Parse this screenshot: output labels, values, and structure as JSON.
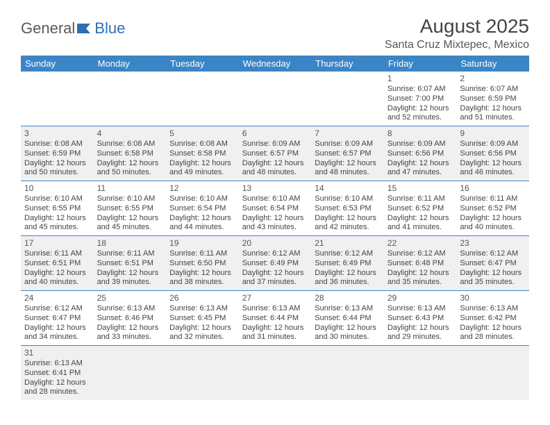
{
  "logo": {
    "text1": "General",
    "text2": "Blue"
  },
  "title": "August 2025",
  "location": "Santa Cruz Mixtepec, Mexico",
  "colors": {
    "header_bg": "#3b85c6",
    "header_text": "#ffffff",
    "row_alt_bg": "#f0f0f0",
    "border": "#3b85c6",
    "text": "#444444"
  },
  "day_headers": [
    "Sunday",
    "Monday",
    "Tuesday",
    "Wednesday",
    "Thursday",
    "Friday",
    "Saturday"
  ],
  "weeks": [
    [
      null,
      null,
      null,
      null,
      null,
      {
        "n": "1",
        "sr": "6:07 AM",
        "ss": "7:00 PM",
        "dl": "12 hours and 52 minutes."
      },
      {
        "n": "2",
        "sr": "6:07 AM",
        "ss": "6:59 PM",
        "dl": "12 hours and 51 minutes."
      }
    ],
    [
      {
        "n": "3",
        "sr": "6:08 AM",
        "ss": "6:59 PM",
        "dl": "12 hours and 50 minutes."
      },
      {
        "n": "4",
        "sr": "6:08 AM",
        "ss": "6:58 PM",
        "dl": "12 hours and 50 minutes."
      },
      {
        "n": "5",
        "sr": "6:08 AM",
        "ss": "6:58 PM",
        "dl": "12 hours and 49 minutes."
      },
      {
        "n": "6",
        "sr": "6:09 AM",
        "ss": "6:57 PM",
        "dl": "12 hours and 48 minutes."
      },
      {
        "n": "7",
        "sr": "6:09 AM",
        "ss": "6:57 PM",
        "dl": "12 hours and 48 minutes."
      },
      {
        "n": "8",
        "sr": "6:09 AM",
        "ss": "6:56 PM",
        "dl": "12 hours and 47 minutes."
      },
      {
        "n": "9",
        "sr": "6:09 AM",
        "ss": "6:56 PM",
        "dl": "12 hours and 46 minutes."
      }
    ],
    [
      {
        "n": "10",
        "sr": "6:10 AM",
        "ss": "6:55 PM",
        "dl": "12 hours and 45 minutes."
      },
      {
        "n": "11",
        "sr": "6:10 AM",
        "ss": "6:55 PM",
        "dl": "12 hours and 45 minutes."
      },
      {
        "n": "12",
        "sr": "6:10 AM",
        "ss": "6:54 PM",
        "dl": "12 hours and 44 minutes."
      },
      {
        "n": "13",
        "sr": "6:10 AM",
        "ss": "6:54 PM",
        "dl": "12 hours and 43 minutes."
      },
      {
        "n": "14",
        "sr": "6:10 AM",
        "ss": "6:53 PM",
        "dl": "12 hours and 42 minutes."
      },
      {
        "n": "15",
        "sr": "6:11 AM",
        "ss": "6:52 PM",
        "dl": "12 hours and 41 minutes."
      },
      {
        "n": "16",
        "sr": "6:11 AM",
        "ss": "6:52 PM",
        "dl": "12 hours and 40 minutes."
      }
    ],
    [
      {
        "n": "17",
        "sr": "6:11 AM",
        "ss": "6:51 PM",
        "dl": "12 hours and 40 minutes."
      },
      {
        "n": "18",
        "sr": "6:11 AM",
        "ss": "6:51 PM",
        "dl": "12 hours and 39 minutes."
      },
      {
        "n": "19",
        "sr": "6:11 AM",
        "ss": "6:50 PM",
        "dl": "12 hours and 38 minutes."
      },
      {
        "n": "20",
        "sr": "6:12 AM",
        "ss": "6:49 PM",
        "dl": "12 hours and 37 minutes."
      },
      {
        "n": "21",
        "sr": "6:12 AM",
        "ss": "6:49 PM",
        "dl": "12 hours and 36 minutes."
      },
      {
        "n": "22",
        "sr": "6:12 AM",
        "ss": "6:48 PM",
        "dl": "12 hours and 35 minutes."
      },
      {
        "n": "23",
        "sr": "6:12 AM",
        "ss": "6:47 PM",
        "dl": "12 hours and 35 minutes."
      }
    ],
    [
      {
        "n": "24",
        "sr": "6:12 AM",
        "ss": "6:47 PM",
        "dl": "12 hours and 34 minutes."
      },
      {
        "n": "25",
        "sr": "6:13 AM",
        "ss": "6:46 PM",
        "dl": "12 hours and 33 minutes."
      },
      {
        "n": "26",
        "sr": "6:13 AM",
        "ss": "6:45 PM",
        "dl": "12 hours and 32 minutes."
      },
      {
        "n": "27",
        "sr": "6:13 AM",
        "ss": "6:44 PM",
        "dl": "12 hours and 31 minutes."
      },
      {
        "n": "28",
        "sr": "6:13 AM",
        "ss": "6:44 PM",
        "dl": "12 hours and 30 minutes."
      },
      {
        "n": "29",
        "sr": "6:13 AM",
        "ss": "6:43 PM",
        "dl": "12 hours and 29 minutes."
      },
      {
        "n": "30",
        "sr": "6:13 AM",
        "ss": "6:42 PM",
        "dl": "12 hours and 28 minutes."
      }
    ],
    [
      {
        "n": "31",
        "sr": "6:13 AM",
        "ss": "6:41 PM",
        "dl": "12 hours and 28 minutes."
      },
      null,
      null,
      null,
      null,
      null,
      null
    ]
  ],
  "labels": {
    "sunrise": "Sunrise:",
    "sunset": "Sunset:",
    "daylight": "Daylight:"
  }
}
